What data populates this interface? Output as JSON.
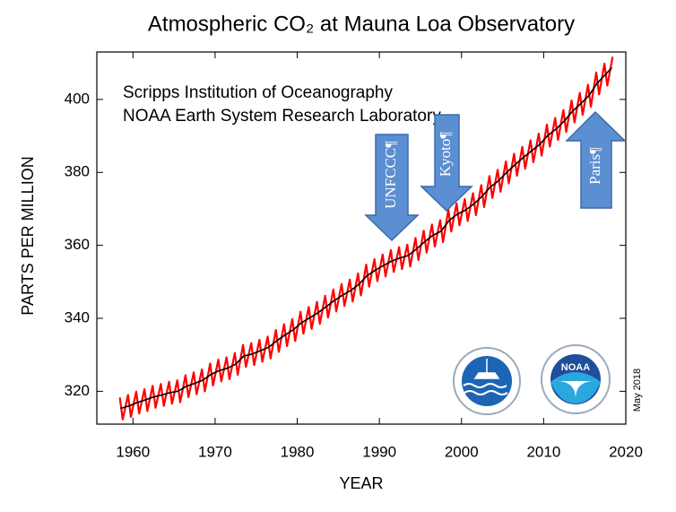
{
  "chart_data": {
    "type": "line",
    "title": "Atmospheric CO₂ at Mauna Loa Observatory",
    "annotations": [
      "Scripps Institution of Oceanography",
      "NOAA Earth System Research Laboratory"
    ],
    "date_note": "May 2018",
    "events": [
      "UNFCCC¶",
      "Kyoto¶",
      "Paris¶"
    ],
    "logo_text": "NOAA",
    "x_label": "YEAR",
    "y_label": "PARTS PER MILLION",
    "xlim": [
      1955.6,
      2020
    ],
    "xticks": [
      1960,
      1970,
      1980,
      1990,
      2000,
      2010,
      2020
    ],
    "ylim": [
      311,
      413
    ],
    "yticks": [
      320,
      340,
      360,
      380,
      400
    ],
    "series": [
      {
        "color": "#ff0000",
        "x": [
          1958.4,
          1958.75,
          1959.4,
          1959.75,
          1960.4,
          1960.75,
          1961.4,
          1961.75,
          1962.4,
          1962.75,
          1963.4,
          1963.75,
          1964.4,
          1964.75,
          1965.4,
          1965.75,
          1966.4,
          1966.75,
          1967.4,
          1967.75,
          1968.4,
          1968.75,
          1969.4,
          1969.75,
          1970.4,
          1970.75,
          1971.4,
          1971.75,
          1972.4,
          1972.75,
          1973.4,
          1973.75,
          1974.4,
          1974.75,
          1975.4,
          1975.75,
          1976.4,
          1976.75,
          1977.4,
          1977.75,
          1978.4,
          1978.75,
          1979.4,
          1979.75,
          1980.4,
          1980.75,
          1981.4,
          1981.75,
          1982.4,
          1982.75,
          1983.4,
          1983.75,
          1984.4,
          1984.75,
          1985.4,
          1985.75,
          1986.4,
          1986.75,
          1987.4,
          1987.75,
          1988.4,
          1988.75,
          1989.4,
          1989.75,
          1990.4,
          1990.75,
          1991.4,
          1991.75,
          1992.4,
          1992.75,
          1993.4,
          1993.75,
          1994.4,
          1994.75,
          1995.4,
          1995.75,
          1996.4,
          1996.75,
          1997.4,
          1997.75,
          1998.4,
          1998.75,
          1999.4,
          1999.75,
          2000.4,
          2000.75,
          2001.4,
          2001.75,
          2002.4,
          2002.75,
          2003.4,
          2003.75,
          2004.4,
          2004.75,
          2005.4,
          2005.75,
          2006.4,
          2006.75,
          2007.4,
          2007.75,
          2008.4,
          2008.75,
          2009.4,
          2009.75,
          2010.4,
          2010.75,
          2011.4,
          2011.75,
          2012.4,
          2012.75,
          2013.4,
          2013.75,
          2014.4,
          2014.75,
          2015.4,
          2015.75,
          2016.4,
          2016.75,
          2017.4,
          2017.75,
          2018.4
        ],
        "values": [
          318.3,
          312.3,
          319.0,
          313.0,
          319.9,
          313.9,
          320.6,
          314.6,
          321.5,
          315.5,
          322.0,
          316.0,
          322.6,
          316.6,
          323.0,
          317.0,
          324.4,
          318.4,
          325.2,
          319.2,
          326.0,
          320.0,
          327.6,
          321.6,
          328.7,
          322.7,
          329.3,
          323.3,
          330.5,
          324.5,
          332.7,
          326.7,
          333.2,
          327.2,
          334.1,
          328.1,
          335.0,
          329.0,
          336.8,
          330.8,
          338.4,
          332.4,
          339.8,
          333.8,
          341.8,
          335.8,
          343.1,
          337.1,
          344.5,
          338.5,
          346.2,
          340.2,
          347.9,
          341.9,
          349.4,
          343.4,
          350.6,
          344.6,
          352.3,
          346.3,
          354.7,
          348.7,
          356.2,
          350.2,
          357.5,
          351.5,
          358.7,
          352.7,
          359.5,
          353.5,
          360.2,
          354.2,
          362.0,
          356.0,
          364.0,
          358.0,
          365.7,
          359.7,
          366.9,
          360.9,
          369.8,
          363.8,
          371.5,
          365.5,
          372.7,
          366.7,
          374.3,
          368.3,
          376.5,
          370.5,
          379.0,
          373.0,
          380.7,
          374.7,
          383.0,
          377.0,
          385.1,
          379.1,
          387.0,
          381.0,
          388.8,
          382.8,
          390.6,
          384.6,
          393.1,
          387.1,
          394.9,
          388.9,
          397.1,
          391.1,
          399.7,
          393.7,
          401.8,
          395.8,
          404.0,
          398.0,
          407.4,
          401.4,
          409.8,
          403.8,
          411.7
        ]
      },
      {
        "color": "#000000",
        "x": [
          1958.5,
          1959.5,
          1960.5,
          1961.5,
          1962.5,
          1963.5,
          1964.5,
          1965.5,
          1966.5,
          1967.5,
          1968.5,
          1969.5,
          1970.5,
          1971.5,
          1972.5,
          1973.5,
          1974.5,
          1975.5,
          1976.5,
          1977.5,
          1978.5,
          1979.5,
          1980.5,
          1981.5,
          1982.5,
          1983.5,
          1984.5,
          1985.5,
          1986.5,
          1987.5,
          1988.5,
          1989.5,
          1990.5,
          1991.5,
          1992.5,
          1993.5,
          1994.5,
          1995.5,
          1996.5,
          1997.5,
          1998.5,
          1999.5,
          2000.5,
          2001.5,
          2002.5,
          2003.5,
          2004.5,
          2005.5,
          2006.5,
          2007.5,
          2008.5,
          2009.5,
          2010.5,
          2011.5,
          2012.5,
          2013.5,
          2014.5,
          2015.5,
          2016.5,
          2017.5,
          2018.3
        ],
        "values": [
          315.3,
          315.97,
          316.91,
          317.64,
          318.45,
          318.99,
          319.62,
          320.04,
          321.38,
          322.16,
          323.04,
          324.62,
          325.68,
          326.32,
          327.46,
          329.68,
          330.19,
          331.12,
          332.03,
          333.84,
          335.41,
          336.84,
          338.76,
          340.12,
          341.48,
          343.15,
          344.85,
          346.35,
          347.61,
          349.31,
          351.69,
          353.2,
          354.45,
          355.7,
          356.54,
          357.21,
          358.96,
          360.97,
          362.74,
          363.88,
          366.84,
          368.54,
          369.71,
          371.32,
          373.45,
          375.98,
          377.7,
          379.98,
          382.09,
          384.02,
          385.83,
          387.64,
          390.1,
          391.85,
          394.06,
          396.74,
          398.81,
          401.01,
          404.41,
          406.76,
          408.72
        ]
      }
    ]
  }
}
